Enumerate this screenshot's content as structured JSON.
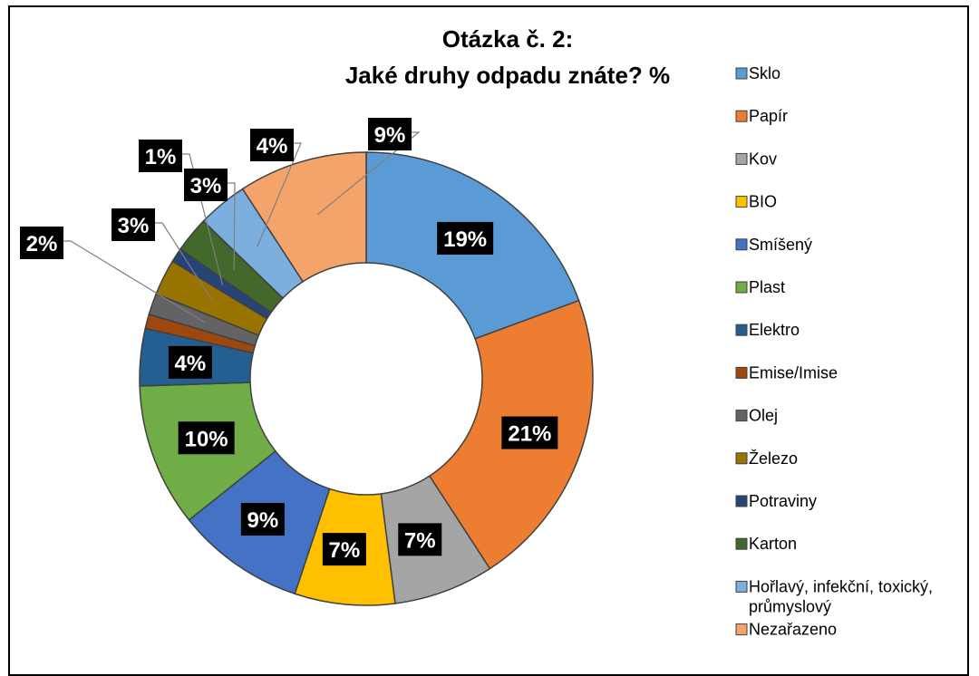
{
  "chart_data": {
    "type": "pie",
    "subtype": "doughnut",
    "title_line1": "Otázka č. 2:",
    "title_line2": "Jaké druhy odpadu znáte? %",
    "legend_position": "right",
    "slices": [
      {
        "name": "Sklo",
        "value": 19,
        "label": "19%",
        "color": "#5b9bd5"
      },
      {
        "name": "Papír",
        "value": 21,
        "label": "21%",
        "color": "#ed7d31"
      },
      {
        "name": "Kov",
        "value": 7,
        "label": "7%",
        "color": "#a5a5a5"
      },
      {
        "name": "BIO",
        "value": 7,
        "label": "7%",
        "color": "#ffc000"
      },
      {
        "name": "Smíšený",
        "value": 9,
        "label": "9%",
        "color": "#4472c4"
      },
      {
        "name": "Plast",
        "value": 10,
        "label": "10%",
        "color": "#70ad47"
      },
      {
        "name": "Elektro",
        "value": 4,
        "label": "4%",
        "color": "#255e91"
      },
      {
        "name": "Emise/Imise",
        "value": 1,
        "label": "",
        "color": "#9e480e"
      },
      {
        "name": "Olej",
        "value": 1.5,
        "label": "2%",
        "color": "#636363"
      },
      {
        "name": "Železo",
        "value": 2.5,
        "label": "3%",
        "color": "#997300"
      },
      {
        "name": "Potraviny",
        "value": 1,
        "label": "1%",
        "color": "#264478"
      },
      {
        "name": "Karton",
        "value": 2.5,
        "label": "3%",
        "color": "#43682b"
      },
      {
        "name": "Hořlavý, infekční, toxický, průmyslový",
        "value": 3.5,
        "label": "4%",
        "color": "#7cafdd"
      },
      {
        "name": "Nezařazeno",
        "value": 9,
        "label": "9%",
        "color": "#f4a46b"
      }
    ]
  }
}
